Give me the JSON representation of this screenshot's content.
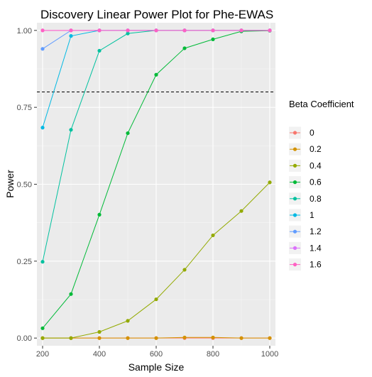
{
  "chart_data": {
    "type": "line",
    "title": "Discovery Linear Power Plot for Phe-EWAS",
    "xlabel": "Sample Size",
    "ylabel": "Power",
    "xlim": [
      180,
      1020
    ],
    "ylim": [
      -0.025,
      1.025
    ],
    "x_ticks": [
      200,
      400,
      600,
      800,
      1000
    ],
    "y_ticks": [
      0.0,
      0.25,
      0.5,
      0.75,
      1.0
    ],
    "x_tick_labels": [
      "200",
      "400",
      "600",
      "800",
      "1000"
    ],
    "y_tick_labels": [
      "0.00",
      "0.25",
      "0.50",
      "0.75",
      "1.00"
    ],
    "reference_line": {
      "y": 0.8,
      "style": "dashed",
      "color": "#000000"
    },
    "x": [
      200,
      300,
      400,
      500,
      600,
      700,
      800,
      900,
      1000
    ],
    "legend": {
      "title": "Beta Coefficient",
      "position": "right"
    },
    "series": [
      {
        "name": "0",
        "color": "#F8766D",
        "values": [
          0,
          0,
          0,
          0,
          0,
          0,
          0,
          0,
          0
        ]
      },
      {
        "name": "0.2",
        "color": "#D39200",
        "values": [
          0,
          0,
          0,
          0,
          0,
          0.002,
          0.002,
          0,
          0
        ]
      },
      {
        "name": "0.4",
        "color": "#93AA00",
        "values": [
          0,
          0,
          0.02,
          0.056,
          0.126,
          0.222,
          0.334,
          0.413,
          0.506
        ]
      },
      {
        "name": "0.6",
        "color": "#00BA38",
        "values": [
          0.032,
          0.143,
          0.401,
          0.666,
          0.856,
          0.942,
          0.971,
          0.997,
          0.999
        ]
      },
      {
        "name": "0.8",
        "color": "#00C19F",
        "values": [
          0.248,
          0.677,
          0.934,
          0.99,
          1,
          1,
          1,
          1,
          1
        ]
      },
      {
        "name": "1",
        "color": "#00B9E3",
        "values": [
          0.684,
          0.982,
          1,
          1,
          1,
          1,
          1,
          1,
          1
        ]
      },
      {
        "name": "1.2",
        "color": "#619CFF",
        "values": [
          0.94,
          1,
          1,
          1,
          1,
          1,
          1,
          1,
          1
        ]
      },
      {
        "name": "1.4",
        "color": "#DB72FB",
        "values": [
          1,
          1,
          1,
          1,
          1,
          1,
          1,
          1,
          1
        ]
      },
      {
        "name": "1.6",
        "color": "#FF61C3",
        "values": [
          1,
          1,
          1,
          1,
          1,
          1,
          1,
          1,
          1
        ]
      }
    ]
  }
}
